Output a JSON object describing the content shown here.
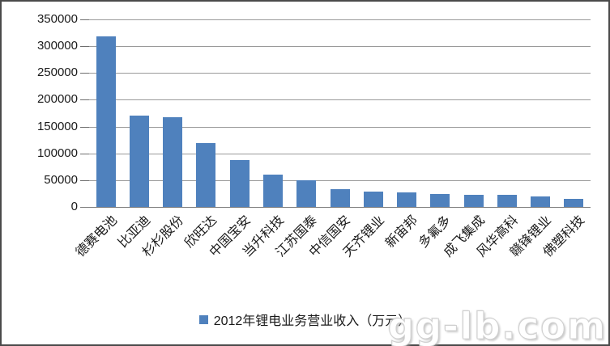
{
  "chart_data": {
    "type": "bar",
    "title": "",
    "categories": [
      "德赛电池",
      "比亚迪",
      "杉杉股份",
      "欣旺达",
      "中国宝安",
      "当升科技",
      "江苏国泰",
      "中信国安",
      "天齐锂业",
      "新宙邦",
      "多氟多",
      "成飞集成",
      "风华高科",
      "赣锋锂业",
      "佛塑科技"
    ],
    "values": [
      318000,
      170000,
      168000,
      120000,
      88000,
      61000,
      50000,
      33000,
      29000,
      26500,
      24500,
      23000,
      22000,
      19000,
      15000
    ],
    "legend": "2012年锂电业务营业收入（万元）",
    "legend_position": "bottom",
    "xlabel": "",
    "ylabel": "",
    "ylim": [
      0,
      350000
    ],
    "yticks": [
      0,
      50000,
      100000,
      150000,
      200000,
      250000,
      300000,
      350000
    ],
    "grid": true,
    "bar_color": "#4F81BD"
  },
  "watermark": "gg-lb.com",
  "colors": {
    "bar": "#4F81BD",
    "gridline": "#9a9a9a",
    "axis": "#7f7f7f",
    "text": "#1a1a1a",
    "frame_border": "#4a4a4a"
  }
}
